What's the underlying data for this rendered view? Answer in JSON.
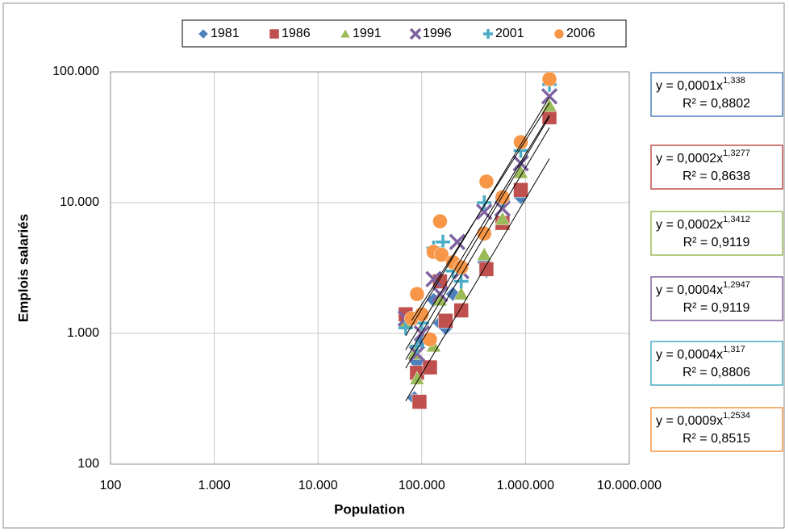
{
  "chart_data": {
    "type": "scatter",
    "xlabel": "Population",
    "ylabel": "Emplois salariés",
    "xscale": "log",
    "yscale": "log",
    "grid": true,
    "legend": "top",
    "xlim": [
      100,
      10000000
    ],
    "xticks": [
      100,
      {
        "value": 1000,
        "label": "1.000"
      },
      {
        "value": 10000,
        "label": "10.000"
      },
      {
        "value": 100000,
        "label": "100.000"
      },
      {
        "value": 1000000,
        "label": "1.000.000"
      },
      {
        "value": 10000000,
        "label": "10.000.000"
      }
    ],
    "ylim": [
      100,
      100000
    ],
    "yticks": [
      100,
      {
        "value": 1000,
        "label": "1.000"
      },
      {
        "value": 10000,
        "label": "10.000"
      },
      {
        "value": 100000,
        "label": "100.000"
      }
    ],
    "series": [
      {
        "name": "1981",
        "color": "#4f81bd",
        "marker": "diamond",
        "x": [
          70000,
          85000,
          90000,
          100000,
          130000,
          150000,
          170000,
          200000,
          240000,
          400000,
          420000,
          600000,
          900000,
          1700000
        ],
        "values": [
          1300,
          320,
          600,
          900,
          1800,
          1200,
          1100,
          2000,
          1500,
          3500,
          3000,
          7000,
          11000,
          50000
        ],
        "trend": {
          "coef": 0.0001,
          "exponent": 1.338,
          "r2": 0.8802,
          "label": "y = 0,0001x",
          "exponent_label": "1,338",
          "r2_label": "R² = 0,8802"
        }
      },
      {
        "name": "1986",
        "color": "#c0504d",
        "marker": "square",
        "x": [
          70000,
          90000,
          95000,
          120000,
          150000,
          170000,
          240000,
          420000,
          600000,
          900000,
          1700000
        ],
        "values": [
          1400,
          500,
          300,
          550,
          2500,
          1250,
          1500,
          3100,
          7000,
          12500,
          45000
        ],
        "trend": {
          "coef": 0.0002,
          "exponent": 1.3277,
          "r2": 0.8638,
          "label": "y = 0,0002x",
          "exponent_label": "1,3277",
          "r2_label": "R² = 0,8638"
        }
      },
      {
        "name": "1991",
        "color": "#9bbb59",
        "marker": "triangle",
        "x": [
          70000,
          85000,
          90000,
          130000,
          150000,
          200000,
          240000,
          400000,
          600000,
          900000,
          1700000
        ],
        "values": [
          1200,
          700,
          450,
          800,
          1800,
          3500,
          2000,
          4000,
          7500,
          17000,
          55000
        ],
        "trend": {
          "coef": 0.0002,
          "exponent": 1.3412,
          "r2": 0.9119,
          "label": "y = 0,0002x",
          "exponent_label": "1,3412",
          "r2_label": "R² = 0,9119"
        }
      },
      {
        "name": "1996",
        "color": "#8064a2",
        "marker": "x",
        "x": [
          70000,
          90000,
          100000,
          130000,
          150000,
          220000,
          240000,
          400000,
          600000,
          900000,
          1700000
        ],
        "values": [
          1300,
          700,
          1000,
          2600,
          2000,
          5000,
          3000,
          8500,
          9000,
          20000,
          65000
        ],
        "trend": {
          "coef": 0.0004,
          "exponent": 1.2947,
          "r2": 0.9119,
          "label": "y = 0,0004x",
          "exponent_label": "1,2947",
          "r2_label": "R² = 0,9119"
        }
      },
      {
        "name": "2001",
        "color": "#4bacc6",
        "marker": "plus",
        "x": [
          70000,
          90000,
          100000,
          130000,
          160000,
          200000,
          240000,
          400000,
          600000,
          900000,
          1700000
        ],
        "values": [
          1100,
          800,
          1200,
          4500,
          5000,
          3000,
          2500,
          10000,
          10500,
          25000,
          80000
        ],
        "trend": {
          "coef": 0.0004,
          "exponent": 1.317,
          "r2": 0.8806,
          "label": "y = 0,0004x",
          "exponent_label": "1,317",
          "r2_label": "R² = 0,8806"
        }
      },
      {
        "name": "2006",
        "color": "#f79646",
        "marker": "circle",
        "x": [
          80000,
          90000,
          100000,
          120000,
          130000,
          150000,
          155000,
          200000,
          240000,
          400000,
          420000,
          600000,
          900000,
          1700000
        ],
        "values": [
          1300,
          2000,
          1400,
          900,
          4200,
          7200,
          4000,
          3500,
          3200,
          5800,
          14500,
          11000,
          29000,
          88000
        ],
        "trend": {
          "coef": 0.0009,
          "exponent": 1.2534,
          "r2": 0.8515,
          "label": "y = 0,0009x",
          "exponent_label": "1,2534",
          "r2_label": "R² = 0,8515"
        }
      }
    ]
  }
}
